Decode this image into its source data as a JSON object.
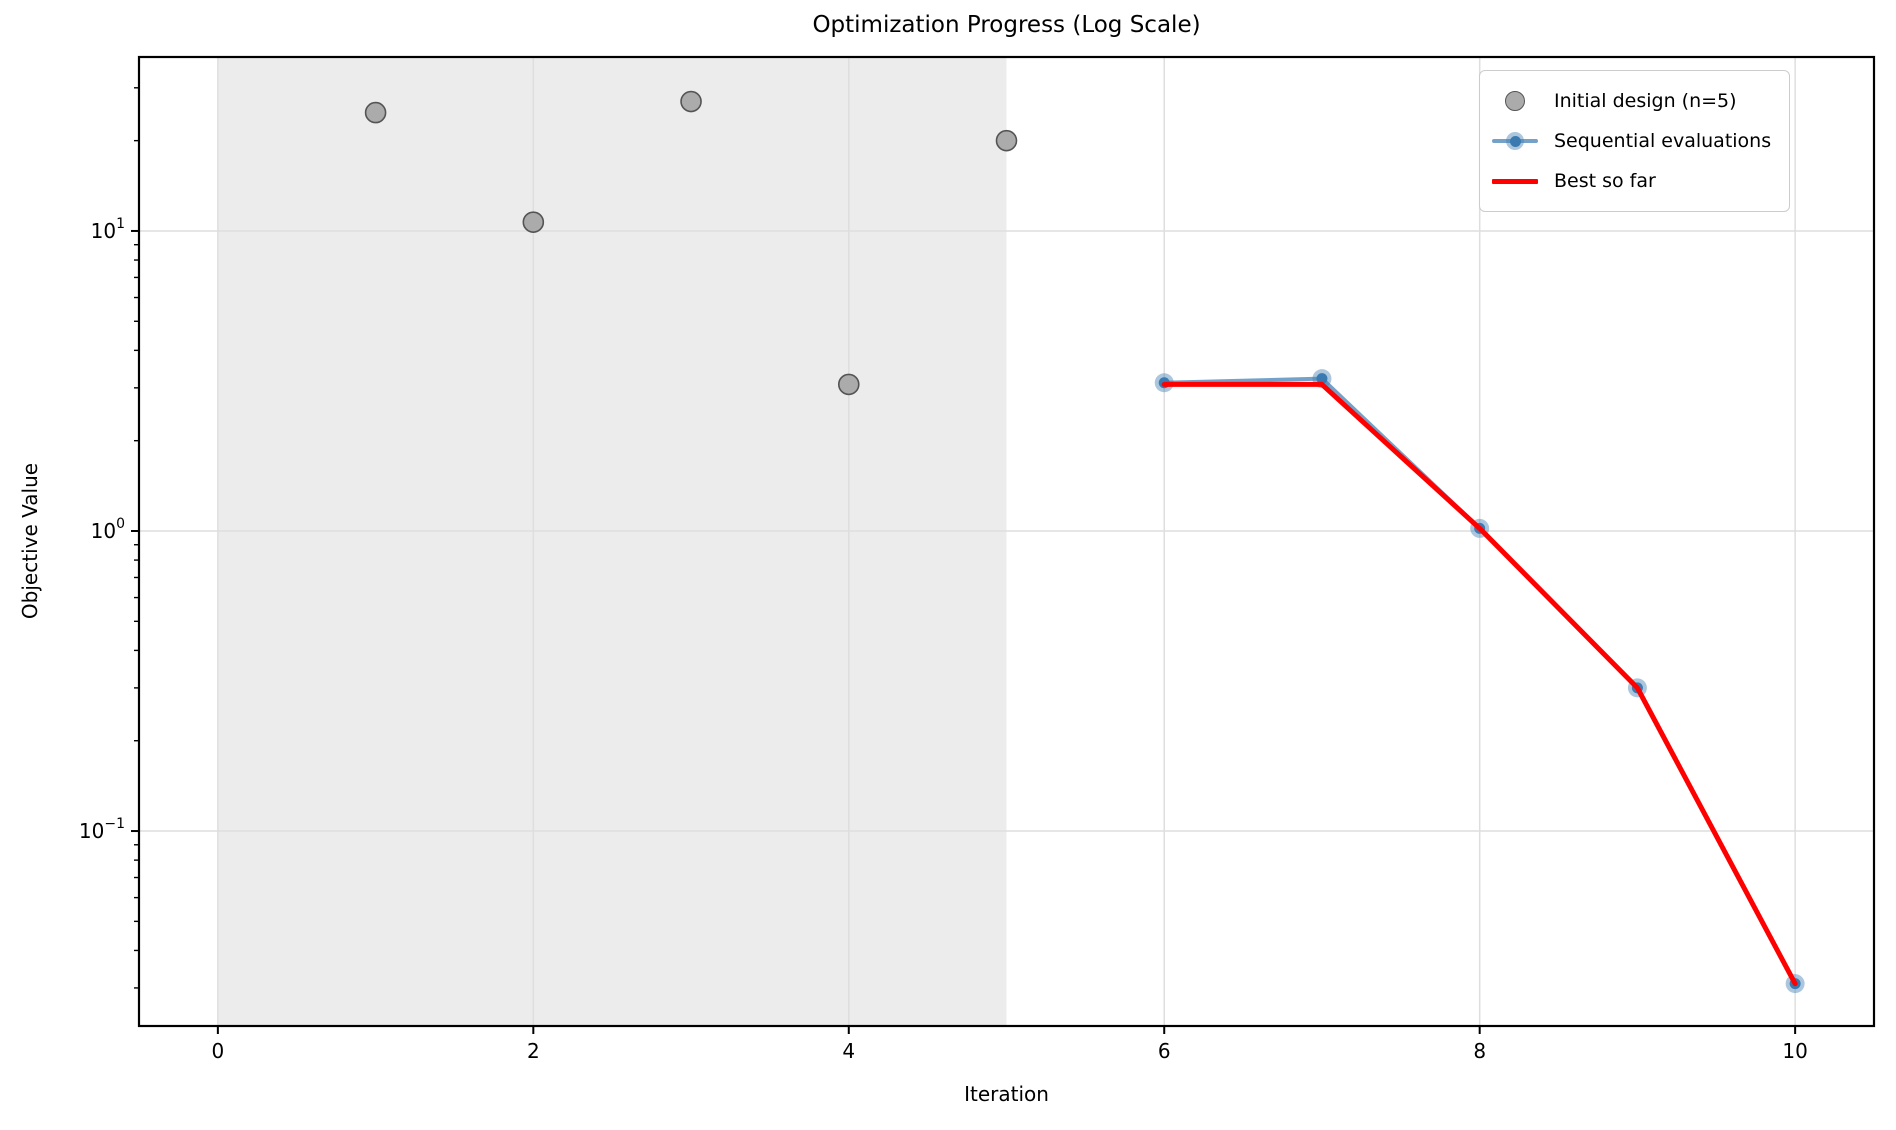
{
  "figure": {
    "title": "Optimization Progress (Log Scale)",
    "xlabel": "Iteration",
    "ylabel": "Objective Value"
  },
  "legend": {
    "items": [
      {
        "label": "Initial design (n=5)",
        "marker": "gray-circle-icon"
      },
      {
        "label": "Sequential evaluations",
        "marker": "blue-line-marker-icon"
      },
      {
        "label": "Best so far",
        "marker": "red-line-icon"
      }
    ]
  },
  "colors": {
    "band": "#ececec",
    "grid": "#dedede",
    "spine": "#000000",
    "tick": "#000000",
    "scatter_fill": "#ababab",
    "scatter_edge": "#545454",
    "blue_line": "rgba(70,130,180,0.75)",
    "blue_marker_halo": "rgba(70,130,180,0.45)",
    "blue_marker_core": "#3a7ab0",
    "red_line": "#ff0000"
  },
  "chart_data": {
    "type": "scatter",
    "title": "Optimization Progress (Log Scale)",
    "xlabel": "Iteration",
    "ylabel": "Objective Value",
    "y_scale": "log",
    "xlim": [
      -0.5,
      10.5
    ],
    "ylim": [
      0.0224,
      38.0
    ],
    "x_ticks": [
      0,
      2,
      4,
      6,
      8,
      10
    ],
    "y_tick_exponents": [
      1,
      0,
      -1
    ],
    "grid": true,
    "legend_position": "upper right",
    "shaded_region_x": [
      0,
      5
    ],
    "series": [
      {
        "name": "Initial design (n=5)",
        "type": "scatter",
        "x": [
          1,
          2,
          3,
          4,
          5
        ],
        "y": [
          24.8,
          10.7,
          27.0,
          3.08,
          20.0
        ]
      },
      {
        "name": "Sequential evaluations",
        "type": "line+marker",
        "x": [
          6,
          7,
          8,
          9,
          10
        ],
        "y": [
          3.12,
          3.22,
          1.02,
          0.3,
          0.031
        ]
      },
      {
        "name": "Best so far",
        "type": "line",
        "x": [
          6,
          7,
          8,
          9,
          10
        ],
        "y": [
          3.08,
          3.08,
          1.02,
          0.3,
          0.031
        ]
      }
    ]
  }
}
